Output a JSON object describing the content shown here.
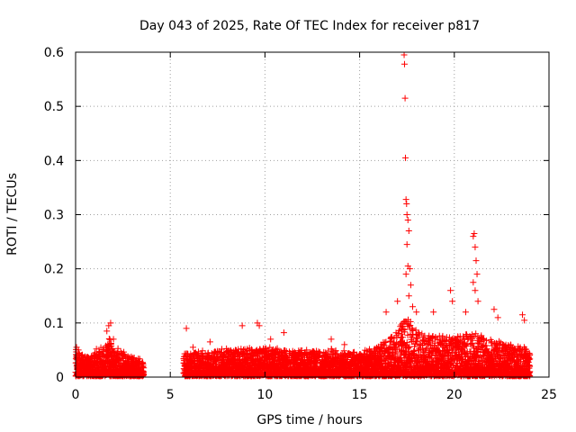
{
  "chart_data": {
    "type": "scatter",
    "title": "Day 043 of 2025, Rate Of TEC Index for receiver p817",
    "xlabel": "GPS time / hours",
    "ylabel": "ROTI / TECUs",
    "xlim": [
      0,
      25
    ],
    "ylim": [
      0,
      0.6
    ],
    "xticks": [
      0,
      5,
      10,
      15,
      20,
      25
    ],
    "yticks": [
      0,
      0.1,
      0.2,
      0.3,
      0.4,
      0.5,
      0.6
    ],
    "xtick_labels": [
      "0",
      "5",
      "10",
      "15",
      "20",
      "25"
    ],
    "ytick_labels": [
      "0",
      "0.1",
      "0.2",
      "0.3",
      "0.4",
      "0.5",
      "0.6"
    ],
    "grid": true,
    "marker": "+",
    "color": "#ff0000",
    "data_segments": [
      {
        "start": 0.0,
        "end": 3.6,
        "level": [
          [
            0.0,
            0.03
          ],
          [
            0.5,
            0.022
          ],
          [
            1.0,
            0.025
          ],
          [
            1.5,
            0.035
          ],
          [
            1.8,
            0.045
          ],
          [
            2.2,
            0.03
          ],
          [
            2.8,
            0.022
          ],
          [
            3.6,
            0.018
          ]
        ]
      },
      {
        "start": 5.7,
        "end": 24.0,
        "level": [
          [
            5.7,
            0.025
          ],
          [
            7.0,
            0.028
          ],
          [
            8.5,
            0.03
          ],
          [
            10.0,
            0.032
          ],
          [
            11.0,
            0.03
          ],
          [
            12.5,
            0.028
          ],
          [
            13.5,
            0.03
          ],
          [
            15.0,
            0.025
          ],
          [
            16.0,
            0.035
          ],
          [
            17.0,
            0.05
          ],
          [
            17.4,
            0.07
          ],
          [
            18.0,
            0.05
          ],
          [
            19.0,
            0.045
          ],
          [
            20.0,
            0.045
          ],
          [
            21.0,
            0.05
          ],
          [
            22.0,
            0.04
          ],
          [
            23.0,
            0.035
          ],
          [
            24.0,
            0.03
          ]
        ]
      }
    ],
    "spike_points": [
      {
        "x": 0.05,
        "y": 0.055
      },
      {
        "x": 0.15,
        "y": 0.05
      },
      {
        "x": 1.1,
        "y": 0.052
      },
      {
        "x": 1.65,
        "y": 0.085
      },
      {
        "x": 1.75,
        "y": 0.095
      },
      {
        "x": 1.85,
        "y": 0.1
      },
      {
        "x": 2.0,
        "y": 0.07
      },
      {
        "x": 5.85,
        "y": 0.09
      },
      {
        "x": 6.2,
        "y": 0.055
      },
      {
        "x": 7.1,
        "y": 0.065
      },
      {
        "x": 8.8,
        "y": 0.095
      },
      {
        "x": 9.6,
        "y": 0.1
      },
      {
        "x": 9.7,
        "y": 0.095
      },
      {
        "x": 10.3,
        "y": 0.07
      },
      {
        "x": 11.0,
        "y": 0.082
      },
      {
        "x": 12.2,
        "y": 0.05
      },
      {
        "x": 13.5,
        "y": 0.07
      },
      {
        "x": 14.2,
        "y": 0.06
      },
      {
        "x": 16.4,
        "y": 0.12
      },
      {
        "x": 17.0,
        "y": 0.14
      },
      {
        "x": 17.35,
        "y": 0.595
      },
      {
        "x": 17.37,
        "y": 0.578
      },
      {
        "x": 17.4,
        "y": 0.515
      },
      {
        "x": 17.42,
        "y": 0.405
      },
      {
        "x": 17.45,
        "y": 0.328
      },
      {
        "x": 17.48,
        "y": 0.32
      },
      {
        "x": 17.5,
        "y": 0.3
      },
      {
        "x": 17.55,
        "y": 0.29
      },
      {
        "x": 17.6,
        "y": 0.27
      },
      {
        "x": 17.5,
        "y": 0.245
      },
      {
        "x": 17.55,
        "y": 0.205
      },
      {
        "x": 17.65,
        "y": 0.2
      },
      {
        "x": 17.45,
        "y": 0.19
      },
      {
        "x": 17.7,
        "y": 0.17
      },
      {
        "x": 17.6,
        "y": 0.15
      },
      {
        "x": 17.8,
        "y": 0.13
      },
      {
        "x": 18.0,
        "y": 0.12
      },
      {
        "x": 18.9,
        "y": 0.12
      },
      {
        "x": 19.8,
        "y": 0.16
      },
      {
        "x": 19.9,
        "y": 0.14
      },
      {
        "x": 20.6,
        "y": 0.12
      },
      {
        "x": 21.0,
        "y": 0.26
      },
      {
        "x": 21.05,
        "y": 0.265
      },
      {
        "x": 21.1,
        "y": 0.24
      },
      {
        "x": 21.15,
        "y": 0.215
      },
      {
        "x": 21.2,
        "y": 0.19
      },
      {
        "x": 21.0,
        "y": 0.175
      },
      {
        "x": 21.1,
        "y": 0.16
      },
      {
        "x": 21.25,
        "y": 0.14
      },
      {
        "x": 22.1,
        "y": 0.125
      },
      {
        "x": 22.3,
        "y": 0.11
      },
      {
        "x": 23.6,
        "y": 0.115
      },
      {
        "x": 23.7,
        "y": 0.105
      }
    ]
  }
}
